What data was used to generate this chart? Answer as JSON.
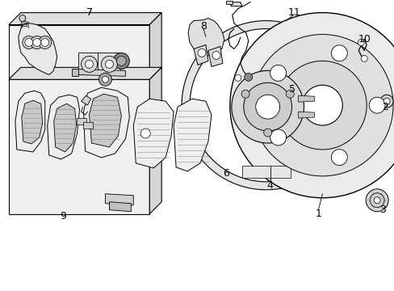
{
  "background_color": "#ffffff",
  "fig_width": 4.89,
  "fig_height": 3.6,
  "dpi": 100,
  "line_color": "#000000",
  "gray_fill": "#e8e8e8",
  "dark_gray": "#555555",
  "mid_gray": "#999999"
}
